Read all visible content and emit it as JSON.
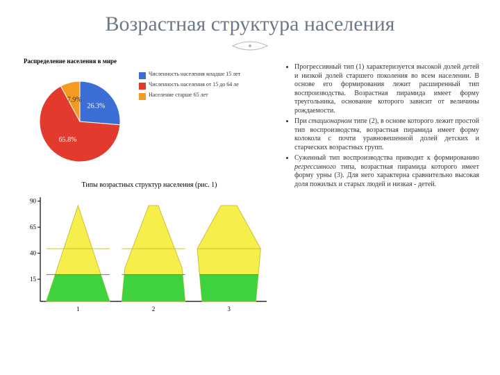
{
  "title": "Возрастная структура населения",
  "pie": {
    "heading": "Распределение населения в мире",
    "slices": [
      {
        "label": "Численность населения младше 15 лет",
        "value": 26.3,
        "color": "#3b6fd6",
        "label_color": "#ffffff"
      },
      {
        "label": "Численность населения от 15 до 64 ле",
        "value": 65.8,
        "color": "#e23b2e",
        "label_color": "#ffffff"
      },
      {
        "label": "Население старше 65 лет",
        "value": 7.9,
        "color": "#f59b22",
        "label_color": "#303030"
      }
    ],
    "background": "#ffffff"
  },
  "pyramids": {
    "heading": "Типы возрастных структур населения (рис. 1)",
    "y_ticks": [
      "90",
      "65",
      "40",
      "15"
    ],
    "x_labels": [
      "1",
      "2",
      "3"
    ],
    "colors": {
      "top": "#f6ef4b",
      "mid": "#f6ef4b",
      "mid_border": "#c9c13a",
      "bottom": "#3fd33f",
      "axis": "#000000",
      "grid": "#c0c0c0",
      "bg": "#ffffff"
    },
    "axis_fontsize": 9
  },
  "bullets": [
    "Прогрессивный тип (1) характеризуется высокой долей детей и низкой долей старшего поколения во всем населении. В основе его формирования лежит расширенный тип воспроизводства. Возрастная пирамида имеет форму треугольника, основание которого зависит от величины рождаемости.",
    "При <em>стационарном</em> типе (2), в основе которого лежит простой тип воспроизводства, возрастная пирамида имеет форму колокола с почти уравновешенной долей детских и старческих возрастных групп.",
    "Суженный тип воспроизводства приводит к формированию <em>регрессивного</em> типа, возрастная пирамида которого имеет форму урны (3). Для него характерна сравнительно высокая доля пожилых и старых людей и низкая - детей."
  ],
  "text_fontsize": 10
}
